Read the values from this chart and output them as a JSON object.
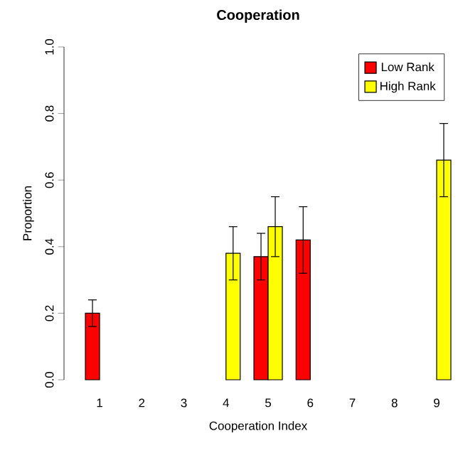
{
  "chart_data": {
    "type": "bar",
    "title": "Cooperation",
    "xlabel": "Cooperation Index",
    "ylabel": "Proportion",
    "categories": [
      "1",
      "2",
      "3",
      "4",
      "5",
      "6",
      "7",
      "8",
      "9"
    ],
    "series": [
      {
        "name": "Low Rank",
        "color": "#ff0000",
        "values": [
          0.2,
          null,
          null,
          null,
          0.37,
          0.42,
          null,
          null,
          null
        ],
        "errors": [
          [
            0.16,
            0.24
          ],
          null,
          null,
          null,
          [
            0.3,
            0.44
          ],
          [
            0.32,
            0.52
          ],
          null,
          null,
          null
        ]
      },
      {
        "name": "High Rank",
        "color": "#ffff00",
        "values": [
          null,
          null,
          null,
          0.38,
          0.46,
          null,
          null,
          null,
          0.66
        ],
        "errors": [
          null,
          null,
          null,
          [
            0.3,
            0.46
          ],
          [
            0.37,
            0.55
          ],
          null,
          null,
          null,
          [
            0.55,
            0.77
          ]
        ]
      }
    ],
    "ylim": [
      0,
      1
    ],
    "yticks": [
      {
        "value": 0,
        "label": "0.0"
      },
      0.2,
      0.4,
      0.6,
      0.8,
      {
        "value": 1,
        "label": "1.0"
      }
    ],
    "legend": "top right"
  }
}
